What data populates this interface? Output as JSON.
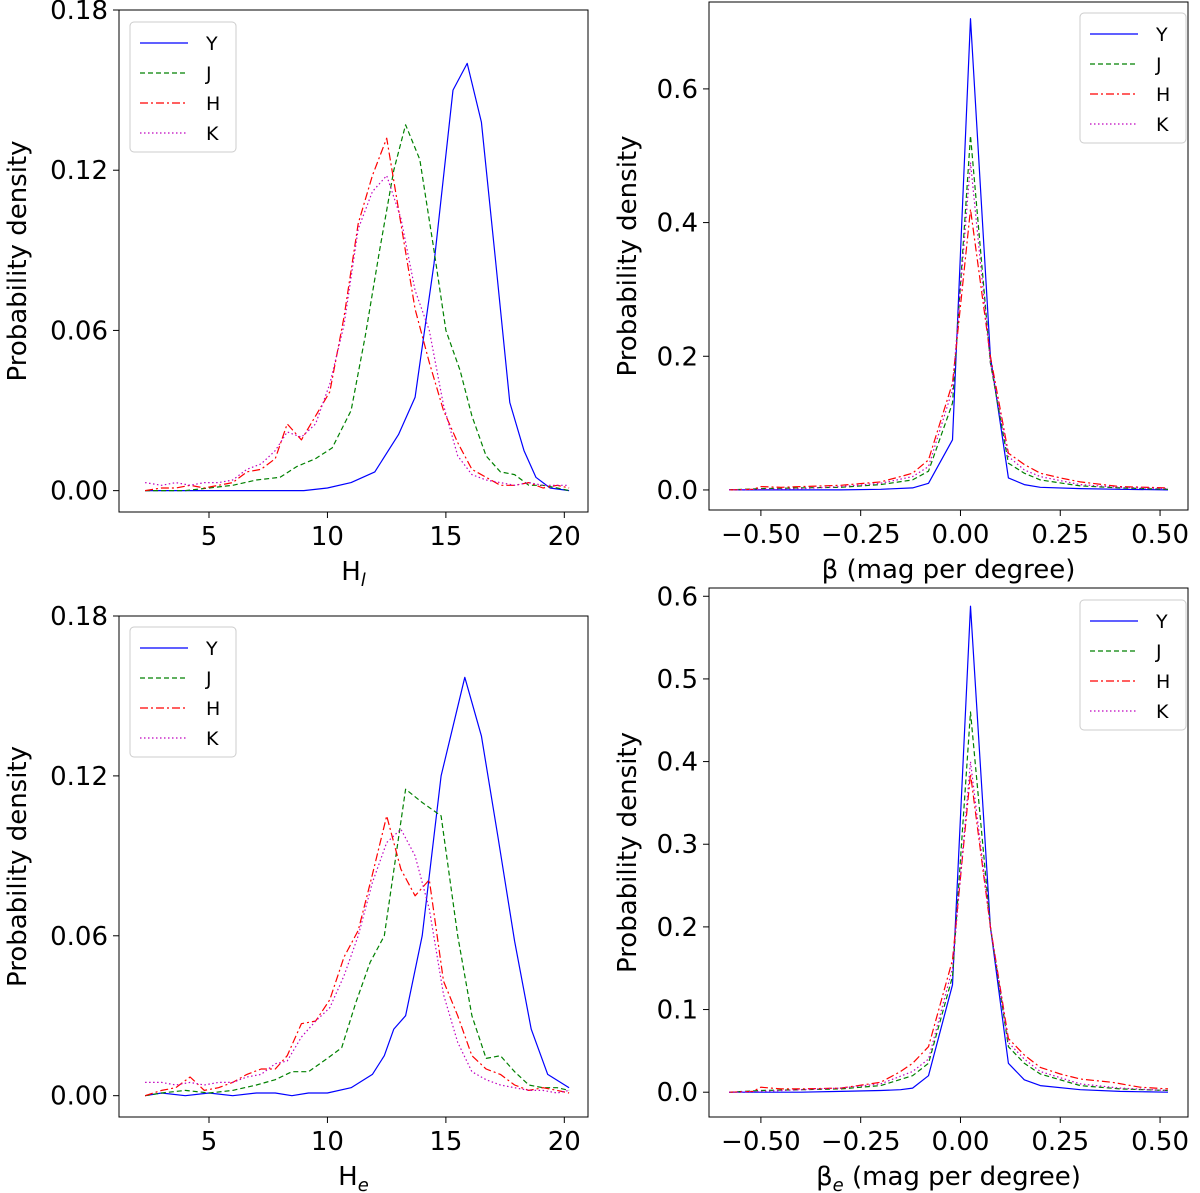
{
  "chart_data": [
    {
      "type": "line",
      "xlabel": "H",
      "xlabel_sub": "l",
      "ylabel": "Probability density",
      "xlim": [
        1.2,
        21.0
      ],
      "ylim": [
        -0.008,
        0.18
      ],
      "xticks": [
        5,
        10,
        15,
        20
      ],
      "yticks": [
        0.0,
        0.06,
        0.12,
        0.18
      ],
      "ytick_labels": [
        "0.00",
        "0.06",
        "0.12",
        "0.18"
      ],
      "legend_position": "top-left",
      "series": [
        {
          "name": "Y",
          "color": "#0000ff",
          "style": "solid",
          "x": [
            2.3,
            3,
            4,
            5,
            6,
            7,
            8,
            9,
            10,
            11,
            12,
            13,
            13.7,
            14.5,
            15.3,
            15.9,
            16.5,
            17.1,
            17.7,
            18.3,
            18.8,
            19.4,
            20.2
          ],
          "y": [
            0,
            0,
            0,
            0,
            0,
            0,
            0,
            0,
            0.001,
            0.003,
            0.007,
            0.021,
            0.035,
            0.085,
            0.15,
            0.16,
            0.138,
            0.086,
            0.033,
            0.015,
            0.005,
            0.001,
            0
          ]
        },
        {
          "name": "J",
          "color": "#008000",
          "style": "dashed",
          "x": [
            2.3,
            3,
            4,
            5,
            6,
            7,
            8,
            8.7,
            9.5,
            10.2,
            11,
            11.6,
            12.2,
            12.8,
            13.3,
            13.9,
            14.5,
            15,
            15.6,
            16.1,
            16.7,
            17.3,
            17.9,
            18.5,
            19.1,
            19.7,
            20.2
          ],
          "y": [
            0,
            0,
            0,
            0.001,
            0.002,
            0.004,
            0.005,
            0.009,
            0.012,
            0.016,
            0.03,
            0.058,
            0.09,
            0.12,
            0.137,
            0.124,
            0.09,
            0.06,
            0.045,
            0.028,
            0.013,
            0.007,
            0.006,
            0.002,
            0.002,
            0.001,
            0
          ]
        },
        {
          "name": "H",
          "color": "#ff0000",
          "style": "dashdot",
          "x": [
            2.3,
            3,
            3.6,
            4.2,
            4.8,
            5.4,
            6,
            6.6,
            7.2,
            7.8,
            8.3,
            8.9,
            9.5,
            10.1,
            10.7,
            11.3,
            11.9,
            12.5,
            13.1,
            13.7,
            14.3,
            14.9,
            15.5,
            16.1,
            16.7,
            17.3,
            17.9,
            18.5,
            19.1,
            19.7,
            20.2
          ],
          "y": [
            0,
            0.001,
            0.001,
            0.002,
            0.001,
            0.002,
            0.003,
            0.007,
            0.008,
            0.012,
            0.025,
            0.019,
            0.028,
            0.037,
            0.065,
            0.1,
            0.118,
            0.132,
            0.1,
            0.068,
            0.048,
            0.03,
            0.018,
            0.008,
            0.005,
            0.002,
            0.002,
            0.003,
            0.001,
            0.002,
            0.001
          ]
        },
        {
          "name": "K",
          "color": "#bf00bf",
          "style": "dotted",
          "x": [
            2.3,
            3,
            3.6,
            4.2,
            4.8,
            5.4,
            6,
            6.6,
            7.2,
            7.8,
            8.3,
            8.9,
            9.5,
            10.1,
            10.7,
            11.3,
            11.9,
            12.5,
            13.1,
            13.7,
            14.3,
            14.9,
            15.5,
            16.1,
            16.7,
            17.3,
            17.9,
            18.5,
            19.1,
            19.7,
            20.2
          ],
          "y": [
            0.003,
            0.002,
            0.003,
            0.002,
            0.003,
            0.003,
            0.004,
            0.008,
            0.01,
            0.015,
            0.022,
            0.02,
            0.025,
            0.04,
            0.062,
            0.098,
            0.112,
            0.118,
            0.102,
            0.075,
            0.06,
            0.032,
            0.013,
            0.006,
            0.004,
            0.003,
            0.002,
            0.003,
            0.002,
            0.002,
            0.002
          ]
        }
      ]
    },
    {
      "type": "line",
      "xlabel": "β (mag per degree)",
      "ylabel": "Probability density",
      "xlim": [
        -0.63,
        0.57
      ],
      "ylim": [
        -0.03,
        0.73
      ],
      "xticks": [
        -0.5,
        -0.25,
        0.0,
        0.25,
        0.5
      ],
      "xtick_labels": [
        "−0.50",
        "−0.25",
        "0.00",
        "0.25",
        "0.50"
      ],
      "yticks": [
        0.0,
        0.2,
        0.4,
        0.6
      ],
      "ytick_labels": [
        "0.0",
        "0.2",
        "0.4",
        "0.6"
      ],
      "legend_position": "top-right",
      "series": [
        {
          "name": "Y",
          "color": "#0000ff",
          "style": "solid",
          "x": [
            -0.58,
            -0.5,
            -0.4,
            -0.3,
            -0.2,
            -0.12,
            -0.08,
            -0.02,
            0.025,
            0.075,
            0.12,
            0.16,
            0.2,
            0.3,
            0.4,
            0.52
          ],
          "y": [
            0,
            0,
            0,
            0,
            0.001,
            0.003,
            0.01,
            0.075,
            0.705,
            0.2,
            0.018,
            0.008,
            0.004,
            0.002,
            0.001,
            0
          ]
        },
        {
          "name": "J",
          "color": "#008000",
          "style": "dashed",
          "x": [
            -0.58,
            -0.5,
            -0.4,
            -0.3,
            -0.2,
            -0.12,
            -0.08,
            -0.02,
            0.025,
            0.075,
            0.12,
            0.16,
            0.2,
            0.3,
            0.4,
            0.52
          ],
          "y": [
            0,
            0.002,
            0.003,
            0.004,
            0.008,
            0.015,
            0.028,
            0.13,
            0.53,
            0.19,
            0.04,
            0.025,
            0.015,
            0.006,
            0.003,
            0.001
          ]
        },
        {
          "name": "H",
          "color": "#ff0000",
          "style": "dashdot",
          "x": [
            -0.58,
            -0.52,
            -0.5,
            -0.45,
            -0.4,
            -0.3,
            -0.2,
            -0.15,
            -0.12,
            -0.08,
            -0.02,
            0.025,
            0.075,
            0.12,
            0.16,
            0.2,
            0.25,
            0.3,
            0.4,
            0.52
          ],
          "y": [
            0,
            0.001,
            0.005,
            0.004,
            0.005,
            0.007,
            0.012,
            0.02,
            0.025,
            0.045,
            0.16,
            0.42,
            0.2,
            0.055,
            0.038,
            0.025,
            0.018,
            0.012,
            0.005,
            0.003
          ]
        },
        {
          "name": "K",
          "color": "#bf00bf",
          "style": "dotted",
          "x": [
            -0.58,
            -0.5,
            -0.4,
            -0.3,
            -0.2,
            -0.12,
            -0.08,
            -0.02,
            0.025,
            0.075,
            0.12,
            0.16,
            0.2,
            0.3,
            0.4,
            0.52
          ],
          "y": [
            0,
            0.001,
            0.002,
            0.005,
            0.01,
            0.02,
            0.035,
            0.15,
            0.49,
            0.19,
            0.05,
            0.03,
            0.02,
            0.008,
            0.004,
            0.002
          ]
        }
      ]
    },
    {
      "type": "line",
      "xlabel": "H",
      "xlabel_sub": "e",
      "ylabel": "Probability density",
      "xlim": [
        1.2,
        21.0
      ],
      "ylim": [
        -0.008,
        0.18
      ],
      "xticks": [
        5,
        10,
        15,
        20
      ],
      "yticks": [
        0.0,
        0.06,
        0.12,
        0.18
      ],
      "ytick_labels": [
        "0.00",
        "0.06",
        "0.12",
        "0.18"
      ],
      "legend_position": "top-left",
      "series": [
        {
          "name": "Y",
          "color": "#0000ff",
          "style": "solid",
          "x": [
            2.3,
            3,
            4,
            5,
            6,
            7,
            7.8,
            8.5,
            9.2,
            10,
            11,
            11.9,
            12.4,
            12.8,
            13.3,
            14,
            14.8,
            15.8,
            16.5,
            17.2,
            17.9,
            18.6,
            19.3,
            20.2
          ],
          "y": [
            0,
            0.001,
            0,
            0.001,
            0,
            0.001,
            0.001,
            0,
            0.001,
            0.001,
            0.003,
            0.008,
            0.015,
            0.025,
            0.03,
            0.06,
            0.12,
            0.157,
            0.135,
            0.097,
            0.058,
            0.025,
            0.008,
            0.003
          ]
        },
        {
          "name": "J",
          "color": "#008000",
          "style": "dashed",
          "x": [
            2.3,
            3,
            4,
            5,
            6,
            7,
            7.8,
            8.5,
            9.2,
            10,
            10.6,
            11.2,
            11.8,
            12.4,
            13.3,
            14,
            14.8,
            15.5,
            16.1,
            16.7,
            17.3,
            17.9,
            18.5,
            19.1,
            19.7,
            20.2
          ],
          "y": [
            0,
            0.001,
            0.002,
            0.001,
            0.002,
            0.004,
            0.006,
            0.009,
            0.009,
            0.014,
            0.018,
            0.035,
            0.05,
            0.06,
            0.115,
            0.11,
            0.105,
            0.06,
            0.03,
            0.014,
            0.015,
            0.009,
            0.004,
            0.003,
            0.003,
            0.002
          ]
        },
        {
          "name": "H",
          "color": "#ff0000",
          "style": "dashdot",
          "x": [
            2.3,
            3,
            3.6,
            4.2,
            4.8,
            5.4,
            6,
            6.6,
            7.2,
            7.8,
            8.3,
            8.9,
            9.5,
            10.1,
            10.7,
            11.3,
            11.9,
            12.5,
            13.1,
            13.7,
            14.3,
            14.9,
            15.5,
            16.1,
            16.7,
            17.3,
            17.9,
            18.5,
            19.1,
            19.7,
            20.2
          ],
          "y": [
            0,
            0.002,
            0.003,
            0.007,
            0.002,
            0.003,
            0.005,
            0.008,
            0.01,
            0.01,
            0.015,
            0.027,
            0.028,
            0.036,
            0.052,
            0.062,
            0.083,
            0.105,
            0.085,
            0.075,
            0.081,
            0.043,
            0.03,
            0.015,
            0.01,
            0.008,
            0.004,
            0.002,
            0.003,
            0.002,
            0.001
          ]
        },
        {
          "name": "K",
          "color": "#bf00bf",
          "style": "dotted",
          "x": [
            2.3,
            3,
            3.6,
            4.2,
            4.8,
            5.4,
            6,
            6.6,
            7.2,
            7.8,
            8.3,
            8.9,
            9.5,
            10.1,
            10.7,
            11.3,
            11.9,
            12.5,
            13.1,
            13.7,
            14.3,
            14.9,
            15.5,
            16.1,
            16.7,
            17.3,
            17.9,
            18.5,
            19.1,
            19.7,
            20.2
          ],
          "y": [
            0.005,
            0.005,
            0.004,
            0.005,
            0.004,
            0.005,
            0.005,
            0.007,
            0.008,
            0.012,
            0.013,
            0.022,
            0.028,
            0.033,
            0.045,
            0.06,
            0.08,
            0.095,
            0.1,
            0.09,
            0.07,
            0.038,
            0.02,
            0.009,
            0.006,
            0.004,
            0.003,
            0.002,
            0.002,
            0.001,
            0.002
          ]
        }
      ]
    },
    {
      "type": "line",
      "xlabel": "β",
      "xlabel_sub": "e",
      "xlabel_suffix": " (mag per degree)",
      "ylabel": "Probability density",
      "xlim": [
        -0.63,
        0.57
      ],
      "ylim": [
        -0.03,
        0.61
      ],
      "xticks": [
        -0.5,
        -0.25,
        0.0,
        0.25,
        0.5
      ],
      "xtick_labels": [
        "−0.50",
        "−0.25",
        "0.00",
        "0.25",
        "0.50"
      ],
      "yticks": [
        0.0,
        0.1,
        0.2,
        0.3,
        0.4,
        0.5,
        0.6
      ],
      "ytick_labels": [
        "0.0",
        "0.1",
        "0.2",
        "0.3",
        "0.4",
        "0.5",
        "0.6"
      ],
      "legend_position": "top-right",
      "series": [
        {
          "name": "Y",
          "color": "#0000ff",
          "style": "solid",
          "x": [
            -0.58,
            -0.5,
            -0.4,
            -0.3,
            -0.2,
            -0.15,
            -0.12,
            -0.08,
            -0.02,
            0.025,
            0.075,
            0.12,
            0.16,
            0.2,
            0.3,
            0.4,
            0.52
          ],
          "y": [
            0,
            0,
            0,
            0.001,
            0.002,
            0.003,
            0.005,
            0.02,
            0.13,
            0.588,
            0.2,
            0.035,
            0.015,
            0.008,
            0.003,
            0.001,
            0
          ]
        },
        {
          "name": "J",
          "color": "#008000",
          "style": "dashed",
          "x": [
            -0.58,
            -0.5,
            -0.4,
            -0.3,
            -0.2,
            -0.12,
            -0.08,
            -0.02,
            0.025,
            0.075,
            0.12,
            0.16,
            0.2,
            0.3,
            0.4,
            0.52
          ],
          "y": [
            0,
            0.002,
            0.003,
            0.004,
            0.008,
            0.02,
            0.035,
            0.14,
            0.46,
            0.2,
            0.055,
            0.035,
            0.022,
            0.008,
            0.004,
            0.002
          ]
        },
        {
          "name": "H",
          "color": "#ff0000",
          "style": "dashdot",
          "x": [
            -0.58,
            -0.52,
            -0.5,
            -0.45,
            -0.4,
            -0.3,
            -0.2,
            -0.15,
            -0.12,
            -0.08,
            -0.02,
            0.025,
            0.075,
            0.12,
            0.16,
            0.2,
            0.25,
            0.3,
            0.38,
            0.45,
            0.52
          ],
          "y": [
            0,
            0.001,
            0.006,
            0.004,
            0.004,
            0.005,
            0.012,
            0.025,
            0.035,
            0.055,
            0.16,
            0.385,
            0.2,
            0.065,
            0.045,
            0.03,
            0.022,
            0.016,
            0.012,
            0.006,
            0.004
          ]
        },
        {
          "name": "K",
          "color": "#bf00bf",
          "style": "dotted",
          "x": [
            -0.58,
            -0.5,
            -0.4,
            -0.3,
            -0.2,
            -0.12,
            -0.08,
            -0.02,
            0.025,
            0.075,
            0.12,
            0.16,
            0.2,
            0.3,
            0.4,
            0.52
          ],
          "y": [
            0,
            0.001,
            0.003,
            0.005,
            0.01,
            0.025,
            0.04,
            0.15,
            0.4,
            0.2,
            0.06,
            0.04,
            0.025,
            0.01,
            0.005,
            0.002
          ]
        }
      ]
    }
  ]
}
